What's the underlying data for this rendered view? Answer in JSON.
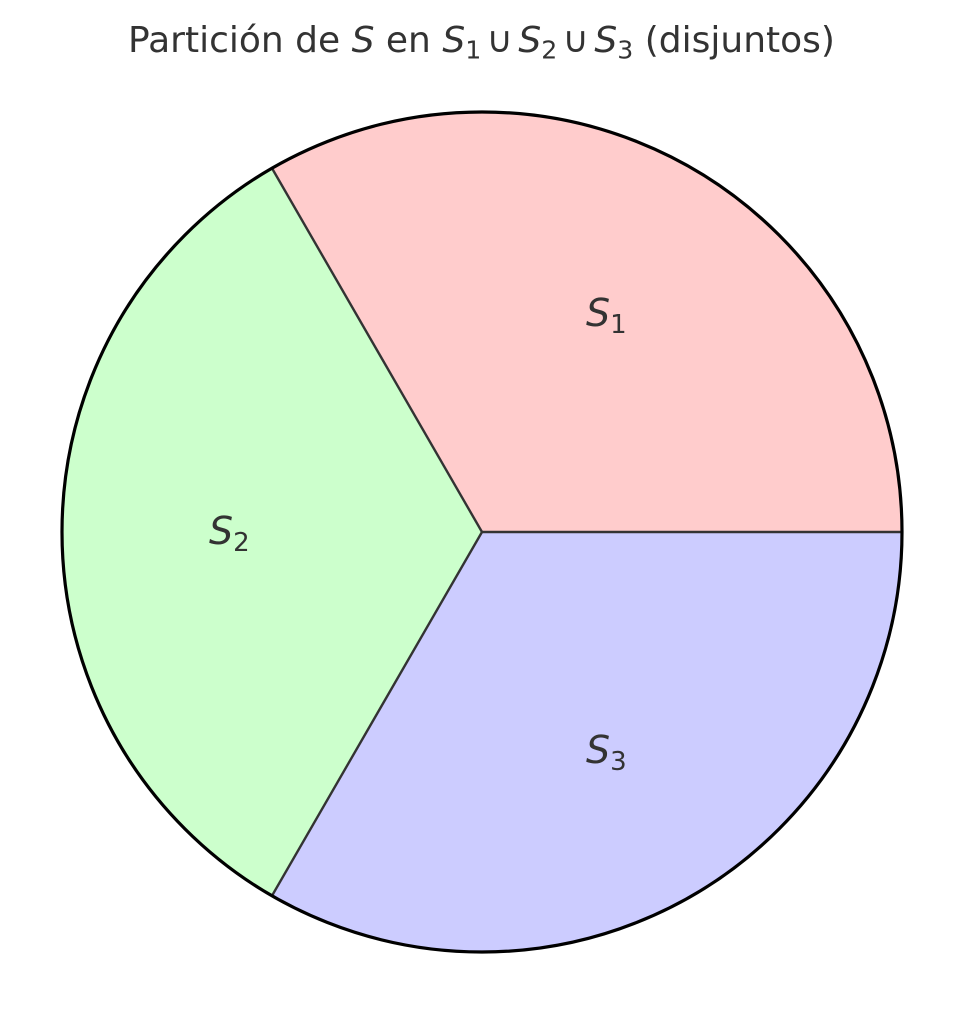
{
  "title": {
    "prefix": "Partición de ",
    "set": "S",
    "en": " en ",
    "s1_base": "S",
    "s1_sub": "1",
    "union1": "∪",
    "s2_base": "S",
    "s2_sub": "2",
    "union2": "∪",
    "s3_base": "S",
    "s3_sub": "3",
    "suffix": " (disjuntos)"
  },
  "regions": [
    {
      "base": "S",
      "sub": "1",
      "fill": "#ffcccc"
    },
    {
      "base": "S",
      "sub": "2",
      "fill": "#ccffcc"
    },
    {
      "base": "S",
      "sub": "3",
      "fill": "#ccccff"
    }
  ],
  "colors": {
    "circle_stroke": "#000000",
    "divider_stroke": "#333333",
    "text": "#333333"
  }
}
